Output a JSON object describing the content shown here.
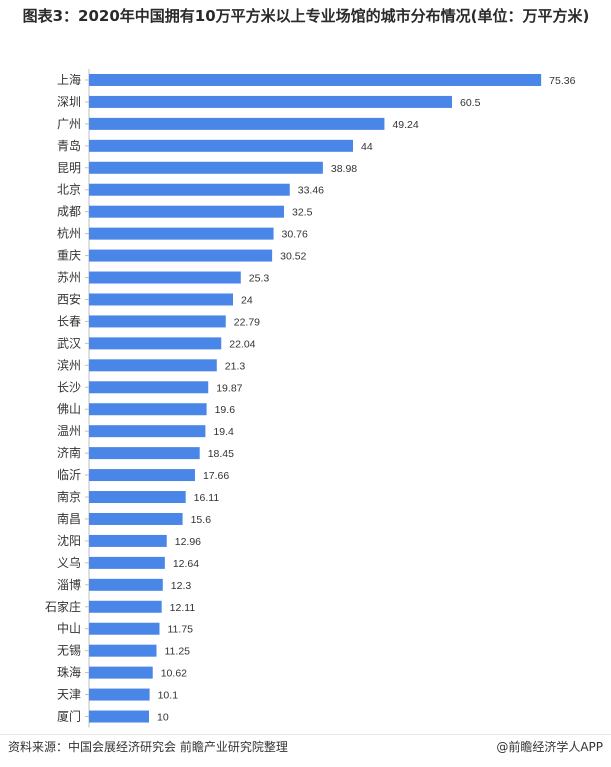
{
  "title": "图表3：2020年中国拥有10万平方米以上专业场馆的城市分布情况(单位：万平方米)",
  "chart_data": {
    "type": "bar",
    "orientation": "horizontal",
    "title": "",
    "xlabel": "",
    "ylabel": "",
    "categories": [
      "上海",
      "深圳",
      "广州",
      "青岛",
      "昆明",
      "北京",
      "成都",
      "杭州",
      "重庆",
      "苏州",
      "西安",
      "长春",
      "武汉",
      "滨州",
      "长沙",
      "佛山",
      "温州",
      "济南",
      "临沂",
      "南京",
      "南昌",
      "沈阳",
      "义乌",
      "淄博",
      "石家庄",
      "中山",
      "无锡",
      "珠海",
      "天津",
      "厦门"
    ],
    "values": [
      75.36,
      60.5,
      49.24,
      44,
      38.98,
      33.46,
      32.5,
      30.76,
      30.52,
      25.3,
      24,
      22.79,
      22.04,
      21.3,
      19.87,
      19.6,
      19.4,
      18.45,
      17.66,
      16.11,
      15.6,
      12.96,
      12.64,
      12.3,
      12.11,
      11.75,
      11.25,
      10.62,
      10.1,
      10
    ],
    "value_labels": [
      "75.36",
      "60.5",
      "49.24",
      "44",
      "38.98",
      "33.46",
      "32.5",
      "30.76",
      "30.52",
      "25.3",
      "24",
      "22.79",
      "22.04",
      "21.3",
      "19.87",
      "19.6",
      "19.4",
      "18.45",
      "17.66",
      "16.11",
      "15.6",
      "12.96",
      "12.64",
      "12.3",
      "12.11",
      "11.75",
      "11.25",
      "10.62",
      "10.1",
      "10"
    ],
    "xlim": [
      0,
      80
    ],
    "grid": false,
    "legend": "none",
    "bar_color": "#4a86e8"
  },
  "footer": {
    "source": "资料来源：中国会展经济研究会 前瞻产业研究院整理",
    "brand": "@前瞻经济学人APP"
  }
}
